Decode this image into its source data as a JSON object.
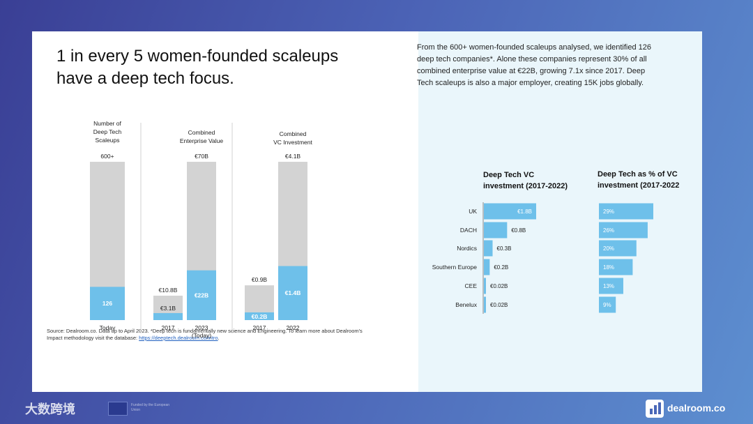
{
  "title_line1": "1 in every 5 women-founded scaleups",
  "title_line2": "have a deep tech focus.",
  "intro_text": "From the 600+ women-founded scaleups analysed, we identified 126  deep tech companies*. Alone these companies represent 30% of all combined enterprise value at €22B,  growing 7.1x since 2017. Deep Tech scaleups is also a major employer, creating 15K jobs globally.",
  "source_text": "Source: Dealroom.co. Data up to April 2023. *Deep tech is fundamentally new science and Engineering. To learn more about Dealroom's Impact methodology visit the database: ",
  "source_link": "https://deeptech.dealroom.co/intro",
  "footer_watermark": "大数跨境",
  "eu_text": "Funded by the European Union",
  "brand": "dealroom.co",
  "colors": {
    "grey": "#d3d3d3",
    "blue": "#6ec0ea",
    "bg_panel": "#eaf6fb"
  },
  "chart_data": [
    {
      "type": "bar",
      "title": "Number of Deep Tech Scaleups",
      "title_lines": [
        "Number of",
        "Deep Tech",
        "Scaleups"
      ],
      "categories": [
        "Today"
      ],
      "category_sublabels": [
        ""
      ],
      "series": [
        {
          "name": "Total",
          "values": [
            600
          ],
          "labels": [
            "600+"
          ]
        },
        {
          "name": "Deep tech",
          "values": [
            126
          ],
          "labels": [
            "126"
          ]
        }
      ],
      "ylim": [
        0,
        600
      ]
    },
    {
      "type": "bar",
      "title": "Combined Enterprise Value",
      "title_lines": [
        "Combined",
        "Enterprise Value"
      ],
      "categories": [
        "2017",
        "2023"
      ],
      "category_sublabels": [
        "",
        "(Today)"
      ],
      "series": [
        {
          "name": "Total",
          "values": [
            10.8,
            70
          ],
          "labels": [
            "€10.8B",
            "€70B"
          ]
        },
        {
          "name": "Deep tech",
          "values": [
            3.1,
            22
          ],
          "labels": [
            "€3.1B",
            "€22B"
          ]
        }
      ],
      "ylim": [
        0,
        70
      ]
    },
    {
      "type": "bar",
      "title": "Combined VC Investment",
      "title_lines": [
        "Combined",
        "VC Investment"
      ],
      "categories": [
        "2017",
        "2022"
      ],
      "category_sublabels": [
        "",
        ""
      ],
      "series": [
        {
          "name": "Total",
          "values": [
            0.9,
            4.1
          ],
          "labels": [
            "€0.9B",
            "€4.1B"
          ]
        },
        {
          "name": "Deep tech",
          "values": [
            0.2,
            1.4
          ],
          "labels": [
            "€0.2B",
            "€1.4B"
          ]
        }
      ],
      "ylim": [
        0,
        4.1
      ]
    },
    {
      "type": "bar",
      "orientation": "horizontal",
      "title": "Deep Tech VC investment (2017-2022)",
      "title_lines": [
        "Deep Tech VC",
        "investment (2017-2022)"
      ],
      "categories": [
        "UK",
        "DACH",
        "Nordics",
        "Southern Europe",
        "CEE",
        "Benelux"
      ],
      "values": [
        1.8,
        0.8,
        0.3,
        0.2,
        0.02,
        0.02
      ],
      "labels": [
        "€1.8B",
        "€0.8B",
        "€0.3B",
        "€0.2B",
        "€0.02B",
        "€0.02B"
      ],
      "xlim": [
        0,
        1.8
      ]
    },
    {
      "type": "bar",
      "orientation": "horizontal",
      "title": "Deep Tech as % of VC investment (2017-2022",
      "title_lines": [
        "Deep Tech as % of VC",
        "investment (2017-2022"
      ],
      "categories": [
        "UK",
        "DACH",
        "Nordics",
        "Southern Europe",
        "CEE",
        "Benelux"
      ],
      "values": [
        29,
        26,
        20,
        18,
        13,
        9
      ],
      "labels": [
        "29%",
        "26%",
        "20%",
        "18%",
        "13%",
        "9%"
      ],
      "xlim": [
        0,
        29
      ]
    }
  ]
}
